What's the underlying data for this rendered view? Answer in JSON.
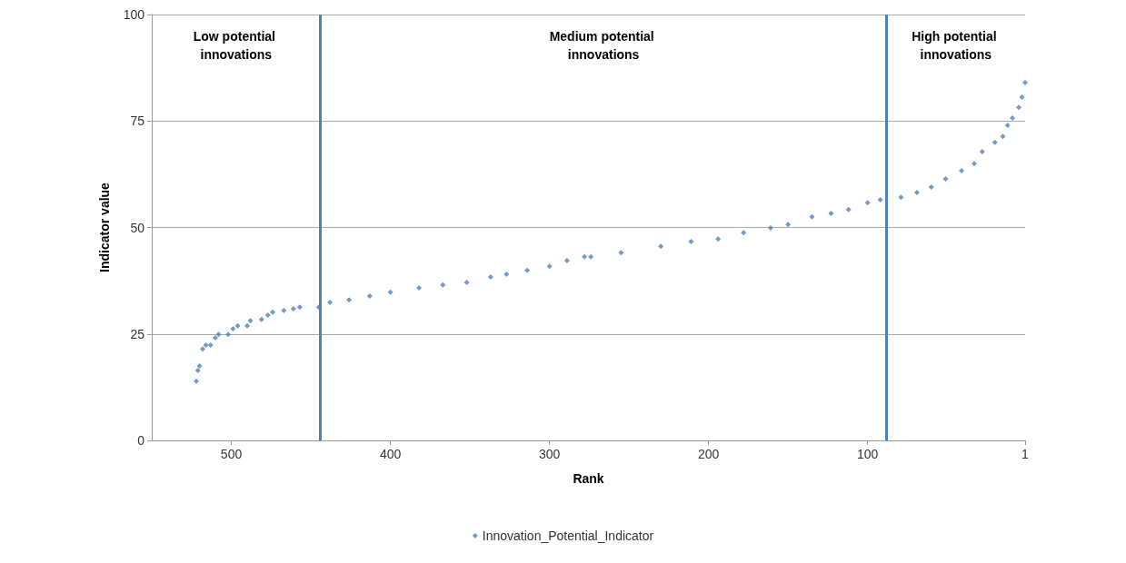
{
  "chart_data": {
    "type": "scatter",
    "xlabel": "Rank",
    "ylabel": "Indicator value",
    "xlim": [
      550,
      1
    ],
    "xticks": [
      500,
      400,
      300,
      200,
      100,
      1
    ],
    "ylim": [
      0,
      100
    ],
    "yticks": [
      0,
      25,
      50,
      75,
      100
    ],
    "grid": "y",
    "legend": "bottom",
    "marker": "diamond",
    "series": [
      {
        "name": "Innovation_Potential_Indicator",
        "color": "#4f81bd",
        "x": [
          522,
          521,
          520,
          518,
          516,
          513,
          510,
          508,
          502,
          499,
          496,
          490,
          488,
          481,
          477,
          474,
          467,
          461,
          457,
          445,
          438,
          426,
          413,
          400,
          382,
          367,
          352,
          337,
          327,
          314,
          300,
          289,
          278,
          274,
          255,
          230,
          211,
          194,
          178,
          161,
          150,
          135,
          123,
          112,
          100,
          92,
          79,
          69,
          60,
          51,
          41,
          33,
          28,
          20,
          15,
          12,
          9,
          5,
          3,
          1
        ],
        "values": [
          13.9,
          16.4,
          17.5,
          21.5,
          22.4,
          22.4,
          24.1,
          24.9,
          24.9,
          26.2,
          26.9,
          26.9,
          28.1,
          28.4,
          29.4,
          30.1,
          30.5,
          30.9,
          31.3,
          31.3,
          32.4,
          33.0,
          33.9,
          34.8,
          35.8,
          36.5,
          37.1,
          38.4,
          39.0,
          39.9,
          40.9,
          42.2,
          43.1,
          43.1,
          44.1,
          45.6,
          46.7,
          47.3,
          48.8,
          49.9,
          50.7,
          52.5,
          53.3,
          54.2,
          55.8,
          56.5,
          57.1,
          58.2,
          59.5,
          61.4,
          63.3,
          65.0,
          67.8,
          70.0,
          71.4,
          74.0,
          75.7,
          78.2,
          80.6,
          84.0
        ]
      }
    ],
    "ref_lines": [
      {
        "axis": "x",
        "value": 444,
        "color": "#4f81bd"
      },
      {
        "axis": "x",
        "value": 88,
        "color": "#4f81bd"
      }
    ],
    "annotations": [
      "Low potential innovations",
      "Medium potential innovations",
      "High potential innovations"
    ]
  }
}
